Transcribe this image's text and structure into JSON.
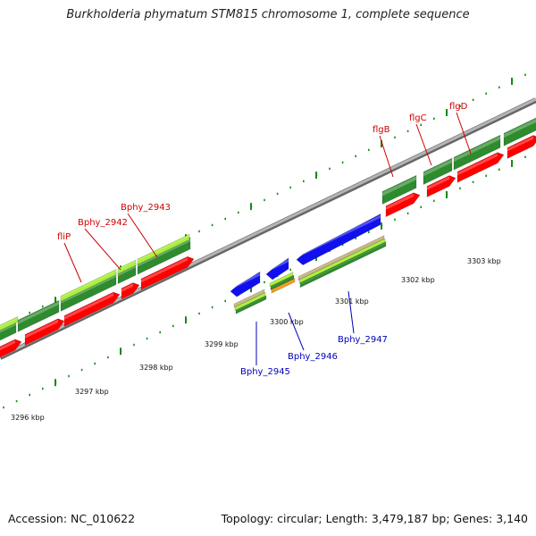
{
  "header": {
    "title": "Burkholderia phymatum STM815 chromosome 1, complete sequence"
  },
  "footer": {
    "accession": "Accession: NC_010622",
    "stats": "Topology: circular; Length: 3,479,187 bp; Genes: 3,140"
  },
  "colors": {
    "backbone": "#8a8a8a",
    "red_cds": "#ff0000",
    "dark_green": "#2e8b2e",
    "light_green": "#aaf03c",
    "blue_cds": "#1010ee",
    "tan": "#c8b682",
    "orange": "#f59a18",
    "tick": "#1a8a1a",
    "red_label": "#d00000",
    "blue_label": "#0000bb"
  },
  "ticks": [
    {
      "label": "3296 kbp"
    },
    {
      "label": "3297 kbp"
    },
    {
      "label": "3298 kbp"
    },
    {
      "label": "3299 kbp"
    },
    {
      "label": "3300 kbp"
    },
    {
      "label": "3301 kbp"
    },
    {
      "label": "3302 kbp"
    },
    {
      "label": "3303 kbp"
    }
  ],
  "gene_labels": [
    {
      "text": "fliP",
      "color": "red"
    },
    {
      "text": "Bphy_2942",
      "color": "red"
    },
    {
      "text": "Bphy_2943",
      "color": "red"
    },
    {
      "text": "flgB",
      "color": "red"
    },
    {
      "text": "flgC",
      "color": "red"
    },
    {
      "text": "flgD",
      "color": "red"
    },
    {
      "text": "Bphy_2945",
      "color": "blue"
    },
    {
      "text": "Bphy_2946",
      "color": "blue"
    },
    {
      "text": "Bphy_2947",
      "color": "blue"
    }
  ]
}
